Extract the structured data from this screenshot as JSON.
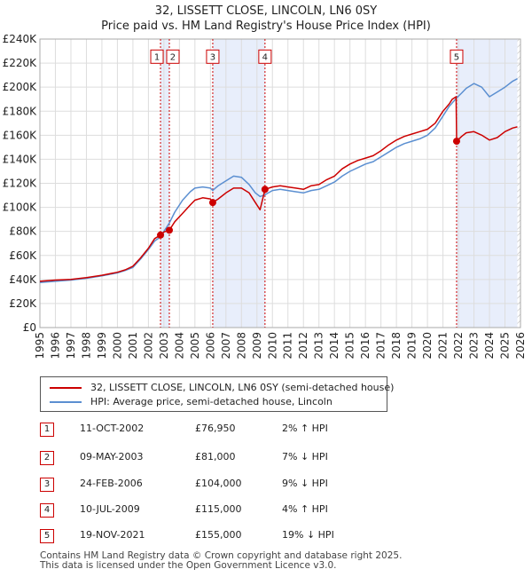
{
  "chart_data": {
    "type": "line",
    "title": "32, LISSETT CLOSE, LINCOLN, LN6 0SY",
    "subtitle": "Price paid vs. HM Land Registry's House Price Index (HPI)",
    "xlabel": "",
    "ylabel": "",
    "xlim": [
      1995,
      2026
    ],
    "ylim": [
      0,
      240000
    ],
    "yticks": [
      0,
      20000,
      40000,
      60000,
      80000,
      100000,
      120000,
      140000,
      160000,
      180000,
      200000,
      220000,
      240000
    ],
    "ytick_labels": [
      "£0",
      "£20K",
      "£40K",
      "£60K",
      "£80K",
      "£100K",
      "£120K",
      "£140K",
      "£160K",
      "£180K",
      "£200K",
      "£220K",
      "£240K"
    ],
    "xticks": [
      1995,
      1996,
      1997,
      1998,
      1999,
      2000,
      2001,
      2002,
      2003,
      2004,
      2005,
      2006,
      2007,
      2008,
      2009,
      2010,
      2011,
      2012,
      2013,
      2014,
      2015,
      2016,
      2017,
      2018,
      2019,
      2020,
      2021,
      2022,
      2023,
      2024,
      2025,
      2026
    ],
    "grid": true,
    "colors": {
      "property": "#cc0000",
      "hpi": "#5b8fd1",
      "shade": "#e8eefb",
      "vline": "#cc0000"
    },
    "series": [
      {
        "name": "32, LISSETT CLOSE, LINCOLN, LN6 0SY (semi-detached house)",
        "color": "#cc0000",
        "points": [
          [
            1995.0,
            38500
          ],
          [
            1996.0,
            39500
          ],
          [
            1997.0,
            40000
          ],
          [
            1998.0,
            41500
          ],
          [
            1999.0,
            43500
          ],
          [
            2000.0,
            46000
          ],
          [
            2000.5,
            48000
          ],
          [
            2001.0,
            51000
          ],
          [
            2001.5,
            58000
          ],
          [
            2002.0,
            66000
          ],
          [
            2002.4,
            74000
          ],
          [
            2002.78,
            76950
          ],
          [
            2003.0,
            79500
          ],
          [
            2003.35,
            81000
          ],
          [
            2003.7,
            88000
          ],
          [
            2004.2,
            95000
          ],
          [
            2004.7,
            102000
          ],
          [
            2005.0,
            106000
          ],
          [
            2005.5,
            108000
          ],
          [
            2006.0,
            107000
          ],
          [
            2006.15,
            104000
          ],
          [
            2006.5,
            107000
          ],
          [
            2007.0,
            112000
          ],
          [
            2007.5,
            116000
          ],
          [
            2008.0,
            116000
          ],
          [
            2008.5,
            112000
          ],
          [
            2008.9,
            104000
          ],
          [
            2009.2,
            98000
          ],
          [
            2009.52,
            115000
          ],
          [
            2010.0,
            117000
          ],
          [
            2010.5,
            118000
          ],
          [
            2011.0,
            117000
          ],
          [
            2011.5,
            116000
          ],
          [
            2012.0,
            115000
          ],
          [
            2012.5,
            118000
          ],
          [
            2013.0,
            119000
          ],
          [
            2013.5,
            123000
          ],
          [
            2014.0,
            126000
          ],
          [
            2014.5,
            132000
          ],
          [
            2015.0,
            136000
          ],
          [
            2015.5,
            139000
          ],
          [
            2016.0,
            141000
          ],
          [
            2016.5,
            143000
          ],
          [
            2017.0,
            147000
          ],
          [
            2017.5,
            152000
          ],
          [
            2018.0,
            156000
          ],
          [
            2018.5,
            159000
          ],
          [
            2019.0,
            161000
          ],
          [
            2019.5,
            163000
          ],
          [
            2020.0,
            165000
          ],
          [
            2020.5,
            170000
          ],
          [
            2021.0,
            180000
          ],
          [
            2021.4,
            186000
          ],
          [
            2021.6,
            190000
          ],
          [
            2021.85,
            192000
          ],
          [
            2021.88,
            155000
          ],
          [
            2022.2,
            159000
          ],
          [
            2022.5,
            162000
          ],
          [
            2023.0,
            163000
          ],
          [
            2023.5,
            160000
          ],
          [
            2024.0,
            156000
          ],
          [
            2024.5,
            158000
          ],
          [
            2025.0,
            163000
          ],
          [
            2025.5,
            166000
          ],
          [
            2025.8,
            167000
          ]
        ]
      },
      {
        "name": "HPI: Average price, semi-detached house, Lincoln",
        "color": "#5b8fd1",
        "points": [
          [
            1995.0,
            37500
          ],
          [
            1996.0,
            38500
          ],
          [
            1997.0,
            39500
          ],
          [
            1998.0,
            41000
          ],
          [
            1999.0,
            43000
          ],
          [
            2000.0,
            45500
          ],
          [
            2000.5,
            47500
          ],
          [
            2001.0,
            50000
          ],
          [
            2001.5,
            57000
          ],
          [
            2002.0,
            65000
          ],
          [
            2002.4,
            72000
          ],
          [
            2002.78,
            75300
          ],
          [
            2003.0,
            80000
          ],
          [
            2003.35,
            87000
          ],
          [
            2003.7,
            96000
          ],
          [
            2004.2,
            106000
          ],
          [
            2004.7,
            113000
          ],
          [
            2005.0,
            116000
          ],
          [
            2005.5,
            117000
          ],
          [
            2006.0,
            116000
          ],
          [
            2006.15,
            114000
          ],
          [
            2006.5,
            118000
          ],
          [
            2007.0,
            122000
          ],
          [
            2007.5,
            126000
          ],
          [
            2008.0,
            125000
          ],
          [
            2008.5,
            119000
          ],
          [
            2008.9,
            112000
          ],
          [
            2009.2,
            109000
          ],
          [
            2009.52,
            110500
          ],
          [
            2010.0,
            114000
          ],
          [
            2010.5,
            115000
          ],
          [
            2011.0,
            114000
          ],
          [
            2011.5,
            113000
          ],
          [
            2012.0,
            112000
          ],
          [
            2012.5,
            114000
          ],
          [
            2013.0,
            115000
          ],
          [
            2013.5,
            118000
          ],
          [
            2014.0,
            121000
          ],
          [
            2014.5,
            126000
          ],
          [
            2015.0,
            130000
          ],
          [
            2015.5,
            133000
          ],
          [
            2016.0,
            136000
          ],
          [
            2016.5,
            138000
          ],
          [
            2017.0,
            142000
          ],
          [
            2017.5,
            146000
          ],
          [
            2018.0,
            150000
          ],
          [
            2018.5,
            153000
          ],
          [
            2019.0,
            155000
          ],
          [
            2019.5,
            157000
          ],
          [
            2020.0,
            160000
          ],
          [
            2020.5,
            166000
          ],
          [
            2021.0,
            176000
          ],
          [
            2021.4,
            184000
          ],
          [
            2021.88,
            191000
          ],
          [
            2022.2,
            195000
          ],
          [
            2022.5,
            199000
          ],
          [
            2023.0,
            203000
          ],
          [
            2023.5,
            200000
          ],
          [
            2024.0,
            192000
          ],
          [
            2024.5,
            196000
          ],
          [
            2025.0,
            200000
          ],
          [
            2025.5,
            205000
          ],
          [
            2025.8,
            207000
          ]
        ]
      }
    ],
    "sales": [
      {
        "id": "1",
        "x": 2002.78,
        "price": 76950
      },
      {
        "id": "2",
        "x": 2003.35,
        "price": 81000
      },
      {
        "id": "3",
        "x": 2006.15,
        "price": 104000
      },
      {
        "id": "4",
        "x": 2009.52,
        "price": 115000
      },
      {
        "id": "5",
        "x": 2021.88,
        "price": 155000
      }
    ],
    "shaded_ranges": [
      [
        2002.78,
        2003.35
      ],
      [
        2006.15,
        2009.52
      ],
      [
        2021.88,
        2025.8
      ]
    ],
    "hatch_from": 2025.8,
    "marker_label_value": 225000
  },
  "legend": {
    "property_label": "32, LISSETT CLOSE, LINCOLN, LN6 0SY (semi-detached house)",
    "hpi_label": "HPI: Average price, semi-detached house, Lincoln"
  },
  "transactions": [
    {
      "num": "1",
      "date": "11-OCT-2002",
      "price": "£76,950",
      "hpi": "2% ↑ HPI"
    },
    {
      "num": "2",
      "date": "09-MAY-2003",
      "price": "£81,000",
      "hpi": "7% ↓ HPI"
    },
    {
      "num": "3",
      "date": "24-FEB-2006",
      "price": "£104,000",
      "hpi": "9% ↓ HPI"
    },
    {
      "num": "4",
      "date": "10-JUL-2009",
      "price": "£115,000",
      "hpi": "4% ↑ HPI"
    },
    {
      "num": "5",
      "date": "19-NOV-2021",
      "price": "£155,000",
      "hpi": "19% ↓ HPI"
    }
  ],
  "footer": {
    "line1": "Contains HM Land Registry data © Crown copyright and database right 2025.",
    "line2": "This data is licensed under the Open Government Licence v3.0."
  }
}
